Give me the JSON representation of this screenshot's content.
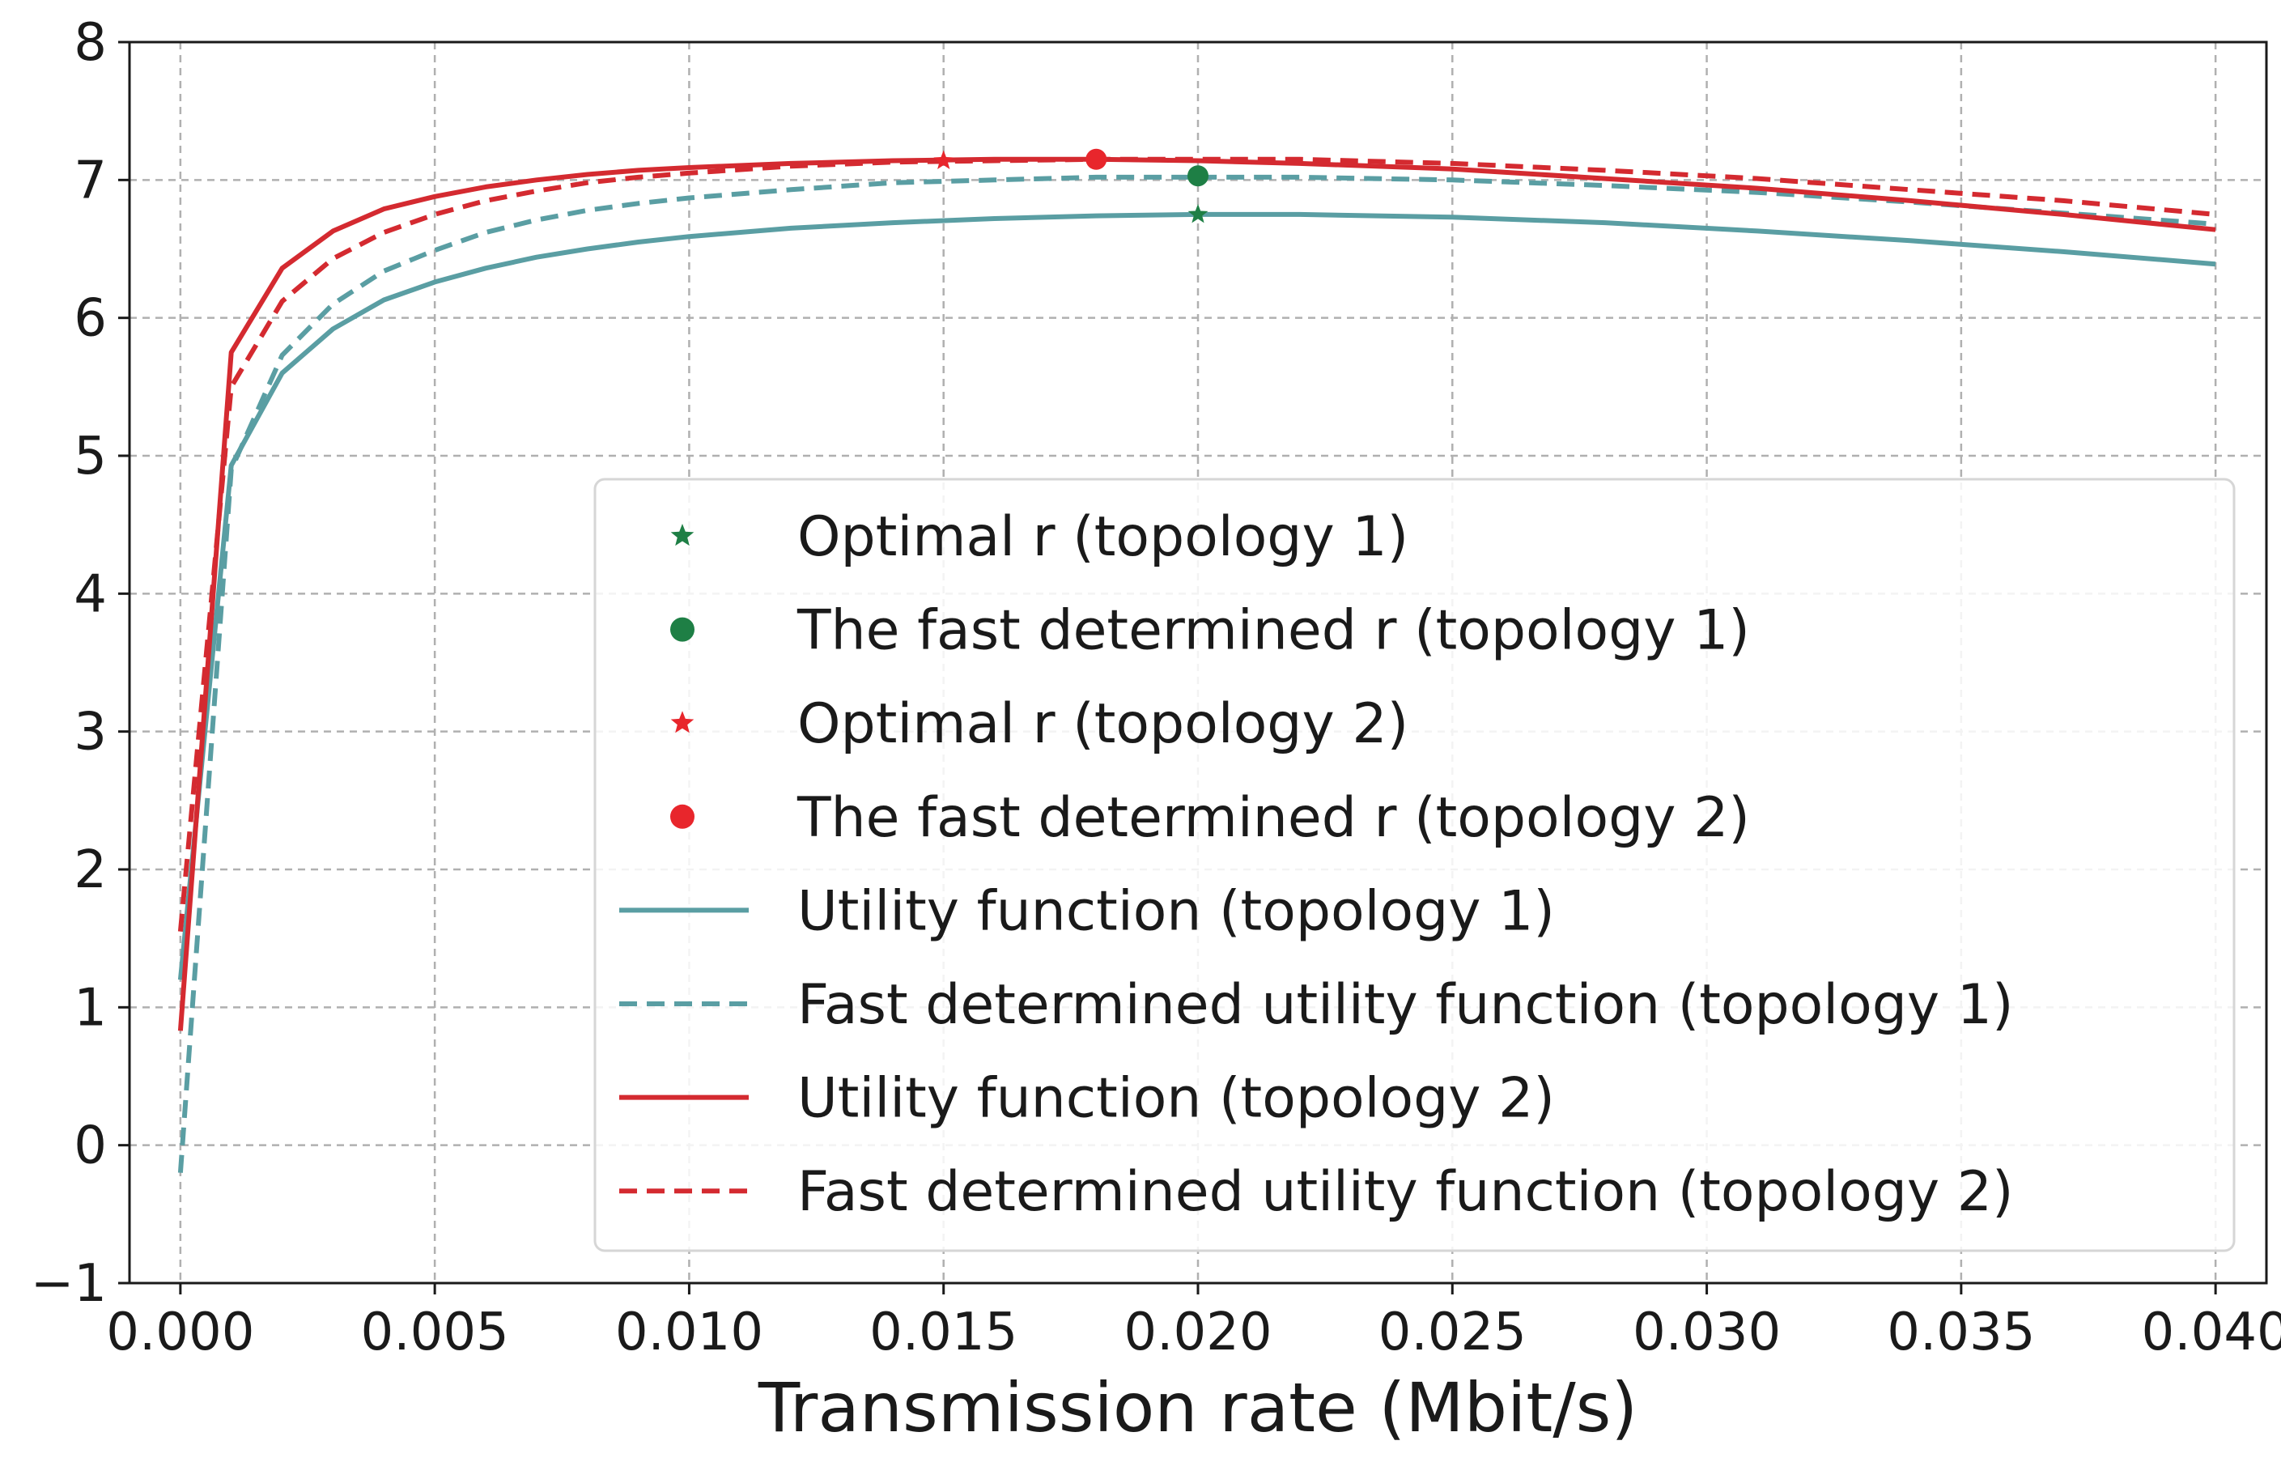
{
  "chart_data": {
    "type": "line",
    "title": "",
    "xlabel": "Transmission rate (Mbit/s)",
    "ylabel": "",
    "xlim": [
      -0.001,
      0.041
    ],
    "ylim": [
      -1,
      8
    ],
    "grid": true,
    "legend_position": "lower-right",
    "x_ticks": [
      0.0,
      0.005,
      0.01,
      0.015,
      0.02,
      0.025,
      0.03,
      0.035,
      0.04
    ],
    "x_tick_labels": [
      "0.000",
      "0.005",
      "0.010",
      "0.015",
      "0.020",
      "0.025",
      "0.030",
      "0.035",
      "0.040"
    ],
    "y_ticks": [
      -1,
      0,
      1,
      2,
      3,
      4,
      5,
      6,
      7,
      8
    ],
    "y_tick_labels": [
      "−1",
      "0",
      "1",
      "2",
      "3",
      "4",
      "5",
      "6",
      "7",
      "8"
    ],
    "x": [
      0.0,
      0.001,
      0.002,
      0.003,
      0.004,
      0.005,
      0.006,
      0.007,
      0.008,
      0.009,
      0.01,
      0.012,
      0.014,
      0.016,
      0.018,
      0.02,
      0.022,
      0.025,
      0.028,
      0.031,
      0.034,
      0.037,
      0.04
    ],
    "series": [
      {
        "name": "Utility function (topology 1)",
        "color": "#5a9ea3",
        "style": "solid",
        "values": [
          1.2,
          4.93,
          5.6,
          5.92,
          6.13,
          6.26,
          6.36,
          6.44,
          6.5,
          6.55,
          6.59,
          6.65,
          6.69,
          6.72,
          6.74,
          6.75,
          6.75,
          6.73,
          6.69,
          6.63,
          6.56,
          6.48,
          6.39
        ]
      },
      {
        "name": "Fast determined utility function (topology 1)",
        "color": "#5a9ea3",
        "style": "dashed",
        "values": [
          -0.2,
          4.9,
          5.73,
          6.1,
          6.34,
          6.49,
          6.62,
          6.71,
          6.78,
          6.83,
          6.87,
          6.93,
          6.98,
          7.0,
          7.02,
          7.02,
          7.02,
          7.0,
          6.96,
          6.91,
          6.84,
          6.76,
          6.68
        ]
      },
      {
        "name": "Utility function (topology 2)",
        "color": "#d42a30",
        "style": "solid",
        "values": [
          0.83,
          5.75,
          6.36,
          6.63,
          6.79,
          6.88,
          6.95,
          7.0,
          7.04,
          7.07,
          7.09,
          7.12,
          7.14,
          7.15,
          7.15,
          7.14,
          7.12,
          7.08,
          7.01,
          6.94,
          6.85,
          6.75,
          6.64
        ]
      },
      {
        "name": "Fast determined utility function (topology 2)",
        "color": "#d42a30",
        "style": "dashed",
        "values": [
          1.55,
          5.5,
          6.12,
          6.43,
          6.62,
          6.75,
          6.85,
          6.92,
          6.98,
          7.02,
          7.05,
          7.1,
          7.13,
          7.14,
          7.15,
          7.15,
          7.15,
          7.12,
          7.07,
          7.01,
          6.93,
          6.85,
          6.75
        ]
      }
    ],
    "markers": [
      {
        "name": "Optimal r (topology 1)",
        "shape": "star",
        "color": "#1e7f45",
        "x": 0.02,
        "y": 6.75
      },
      {
        "name": "The fast determined r (topology 1)",
        "shape": "circle",
        "color": "#1e7f45",
        "x": 0.02,
        "y": 7.03
      },
      {
        "name": "Optimal r (topology 2)",
        "shape": "star",
        "color": "#e8262c",
        "x": 0.015,
        "y": 7.14
      },
      {
        "name": "The fast determined r (topology 2)",
        "shape": "circle",
        "color": "#e8262c",
        "x": 0.018,
        "y": 7.15
      }
    ],
    "legend": [
      {
        "label": "Optimal r (topology 1)",
        "kind": "star",
        "color": "#1e7f45"
      },
      {
        "label": "The fast determined r (topology 1)",
        "kind": "circle",
        "color": "#1e7f45"
      },
      {
        "label": "Optimal r (topology 2)",
        "kind": "star",
        "color": "#e8262c"
      },
      {
        "label": "The fast determined r (topology 2)",
        "kind": "circle",
        "color": "#e8262c"
      },
      {
        "label": "Utility function (topology 1)",
        "kind": "solid",
        "color": "#5a9ea3"
      },
      {
        "label": "Fast determined utility function (topology 1)",
        "kind": "dashed",
        "color": "#5a9ea3"
      },
      {
        "label": "Utility function (topology 2)",
        "kind": "solid",
        "color": "#d42a30"
      },
      {
        "label": "Fast determined utility function (topology 2)",
        "kind": "dashed",
        "color": "#d42a30"
      }
    ]
  }
}
